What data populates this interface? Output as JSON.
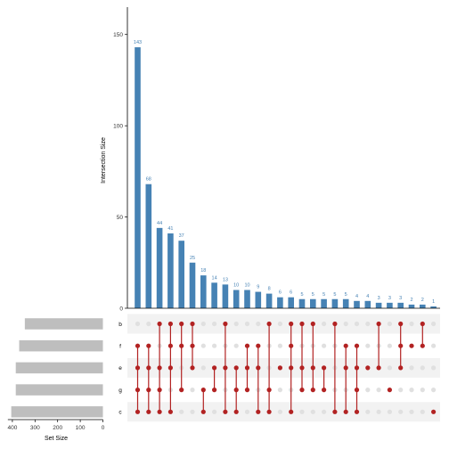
{
  "chart_data": {
    "type": "upset",
    "colors": {
      "bar": "#4682B4",
      "bar_label": "#4682B4",
      "set_bar": "#BEBEBE",
      "dot_active": "#B22222",
      "dot_inactive": "#E0E0E0",
      "stripe": "#F2F2F2",
      "axis": "#000000",
      "tick_text": "#333333"
    },
    "intersection_size": {
      "ylabel": "Intersection Size",
      "ylim": [
        0,
        165
      ],
      "yticks": [
        0,
        50,
        100,
        150
      ],
      "values": [
        143,
        68,
        44,
        41,
        37,
        25,
        18,
        14,
        13,
        10,
        10,
        9,
        8,
        6,
        6,
        5,
        5,
        5,
        5,
        5,
        4,
        4,
        3,
        3,
        3,
        2,
        2,
        1
      ],
      "labels": [
        "143",
        "68",
        "44",
        "41",
        "37",
        "25",
        "18",
        "14",
        "13",
        "10",
        "10",
        "9",
        "8",
        "6",
        "6",
        "5",
        "5",
        "5",
        "5",
        "5",
        "4",
        "4",
        "3",
        "3",
        "3",
        "2",
        "2",
        "1"
      ]
    },
    "sets": [
      "b",
      "f",
      "e",
      "g",
      "c"
    ],
    "set_size": {
      "xlabel": "Set Size",
      "xlim": [
        0,
        420
      ],
      "xticks": [
        400,
        300,
        200,
        100,
        0
      ],
      "values": [
        345,
        370,
        385,
        385,
        405
      ]
    },
    "matrix": [
      [
        0,
        1,
        1,
        1,
        1
      ],
      [
        0,
        1,
        1,
        1,
        1
      ],
      [
        1,
        0,
        1,
        1,
        1
      ],
      [
        1,
        1,
        1,
        0,
        1
      ],
      [
        1,
        1,
        0,
        1,
        0
      ],
      [
        1,
        1,
        1,
        0,
        0
      ],
      [
        0,
        0,
        0,
        1,
        1
      ],
      [
        0,
        0,
        1,
        1,
        0
      ],
      [
        1,
        0,
        1,
        0,
        1
      ],
      [
        0,
        0,
        1,
        1,
        1
      ],
      [
        0,
        1,
        1,
        1,
        0
      ],
      [
        0,
        1,
        1,
        0,
        1
      ],
      [
        1,
        0,
        0,
        1,
        1
      ],
      [
        0,
        0,
        1,
        0,
        0
      ],
      [
        1,
        1,
        1,
        0,
        1
      ],
      [
        1,
        0,
        1,
        1,
        0
      ],
      [
        1,
        0,
        1,
        1,
        0
      ],
      [
        0,
        0,
        1,
        1,
        0
      ],
      [
        1,
        0,
        0,
        0,
        1
      ],
      [
        0,
        1,
        1,
        0,
        1
      ],
      [
        0,
        1,
        1,
        1,
        1
      ],
      [
        0,
        0,
        1,
        0,
        0
      ],
      [
        1,
        0,
        1,
        0,
        0
      ],
      [
        0,
        0,
        0,
        1,
        0
      ],
      [
        1,
        1,
        1,
        0,
        0
      ],
      [
        0,
        1,
        0,
        0,
        0
      ],
      [
        1,
        1,
        0,
        0,
        0
      ],
      [
        0,
        0,
        0,
        0,
        1
      ]
    ]
  }
}
